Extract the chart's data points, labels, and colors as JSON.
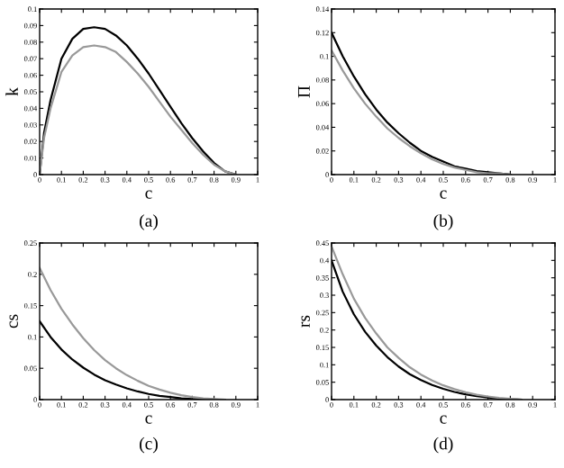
{
  "chart_data": [
    {
      "type": "line",
      "ylabel": "k",
      "xlabel": "c",
      "annotations": [
        "(a)"
      ],
      "x": [
        0,
        0.02,
        0.05,
        0.1,
        0.15,
        0.2,
        0.25,
        0.3,
        0.35,
        0.4,
        0.45,
        0.5,
        0.55,
        0.6,
        0.65,
        0.7,
        0.75,
        0.8,
        0.85,
        0.9
      ],
      "xlim": [
        0,
        1
      ],
      "xticks": [
        0,
        0.1,
        0.2,
        0.3,
        0.4,
        0.5,
        0.6,
        0.7,
        0.8,
        0.9,
        1
      ],
      "ylim": [
        0,
        0.1
      ],
      "yticks": [
        0,
        0.01,
        0.02,
        0.03,
        0.04,
        0.05,
        0.06,
        0.07,
        0.08,
        0.09,
        0.1
      ],
      "grid": false,
      "legend": false,
      "series": [
        {
          "color": "#000000",
          "values": [
            0,
            0.025,
            0.045,
            0.07,
            0.082,
            0.088,
            0.089,
            0.088,
            0.084,
            0.078,
            0.07,
            0.061,
            0.051,
            0.041,
            0.031,
            0.022,
            0.014,
            0.007,
            0.002,
            0
          ]
        },
        {
          "color": "#999999",
          "values": [
            0,
            0.022,
            0.04,
            0.062,
            0.072,
            0.077,
            0.078,
            0.077,
            0.074,
            0.068,
            0.061,
            0.053,
            0.044,
            0.035,
            0.027,
            0.019,
            0.012,
            0.006,
            0.002,
            0
          ]
        }
      ]
    },
    {
      "type": "line",
      "ylabel": "Π",
      "xlabel": "c",
      "annotations": [
        "(b)"
      ],
      "x": [
        0,
        0.05,
        0.1,
        0.15,
        0.2,
        0.25,
        0.3,
        0.35,
        0.4,
        0.45,
        0.5,
        0.55,
        0.6,
        0.65,
        0.7,
        0.75,
        0.8
      ],
      "xlim": [
        0,
        1
      ],
      "xticks": [
        0,
        0.1,
        0.2,
        0.3,
        0.4,
        0.5,
        0.6,
        0.7,
        0.8,
        0.9,
        1
      ],
      "ylim": [
        0,
        0.14
      ],
      "yticks": [
        0,
        0.02,
        0.04,
        0.06,
        0.08,
        0.1,
        0.12,
        0.14
      ],
      "grid": false,
      "legend": false,
      "series": [
        {
          "color": "#000000",
          "values": [
            0.12,
            0.1,
            0.083,
            0.068,
            0.055,
            0.044,
            0.035,
            0.027,
            0.02,
            0.015,
            0.011,
            0.007,
            0.005,
            0.003,
            0.002,
            0.001,
            0
          ]
        },
        {
          "color": "#999999",
          "values": [
            0.105,
            0.088,
            0.073,
            0.06,
            0.049,
            0.039,
            0.031,
            0.024,
            0.018,
            0.013,
            0.009,
            0.006,
            0.004,
            0.002,
            0.001,
            0.001,
            0
          ]
        }
      ]
    },
    {
      "type": "line",
      "ylabel": "cs",
      "xlabel": "c",
      "annotations": [
        "(c)"
      ],
      "x": [
        0,
        0.05,
        0.1,
        0.15,
        0.2,
        0.25,
        0.3,
        0.35,
        0.4,
        0.45,
        0.5,
        0.55,
        0.6,
        0.65,
        0.7,
        0.75,
        0.8,
        0.85
      ],
      "xlim": [
        0,
        1
      ],
      "xticks": [
        0,
        0.1,
        0.2,
        0.3,
        0.4,
        0.5,
        0.6,
        0.7,
        0.8,
        0.9,
        1
      ],
      "ylim": [
        0,
        0.25
      ],
      "yticks": [
        0,
        0.05,
        0.1,
        0.15,
        0.2,
        0.25
      ],
      "grid": false,
      "legend": false,
      "series": [
        {
          "color": "#000000",
          "values": [
            0.125,
            0.1,
            0.08,
            0.064,
            0.051,
            0.04,
            0.031,
            0.024,
            0.018,
            0.013,
            0.009,
            0.006,
            0.004,
            0.002,
            0.001,
            0.001,
            0,
            0
          ]
        },
        {
          "color": "#999999",
          "values": [
            0.21,
            0.175,
            0.145,
            0.12,
            0.098,
            0.079,
            0.063,
            0.05,
            0.039,
            0.03,
            0.022,
            0.016,
            0.011,
            0.007,
            0.004,
            0.002,
            0.001,
            0
          ]
        }
      ]
    },
    {
      "type": "line",
      "ylabel": "rs",
      "xlabel": "c",
      "annotations": [
        "(d)"
      ],
      "x": [
        0,
        0.05,
        0.1,
        0.15,
        0.2,
        0.25,
        0.3,
        0.35,
        0.4,
        0.45,
        0.5,
        0.55,
        0.6,
        0.65,
        0.7,
        0.75,
        0.8,
        0.85
      ],
      "xlim": [
        0,
        1
      ],
      "xticks": [
        0,
        0.1,
        0.2,
        0.3,
        0.4,
        0.5,
        0.6,
        0.7,
        0.8,
        0.9,
        1
      ],
      "ylim": [
        0,
        0.45
      ],
      "yticks": [
        0,
        0.05,
        0.1,
        0.15,
        0.2,
        0.25,
        0.3,
        0.35,
        0.4,
        0.45
      ],
      "grid": false,
      "legend": false,
      "series": [
        {
          "color": "#000000",
          "values": [
            0.4,
            0.31,
            0.245,
            0.195,
            0.155,
            0.122,
            0.095,
            0.073,
            0.056,
            0.042,
            0.031,
            0.022,
            0.015,
            0.01,
            0.006,
            0.003,
            0.001,
            0
          ]
        },
        {
          "color": "#999999",
          "values": [
            0.44,
            0.36,
            0.29,
            0.235,
            0.19,
            0.15,
            0.12,
            0.093,
            0.072,
            0.055,
            0.041,
            0.03,
            0.021,
            0.014,
            0.009,
            0.005,
            0.002,
            0
          ]
        }
      ]
    }
  ]
}
